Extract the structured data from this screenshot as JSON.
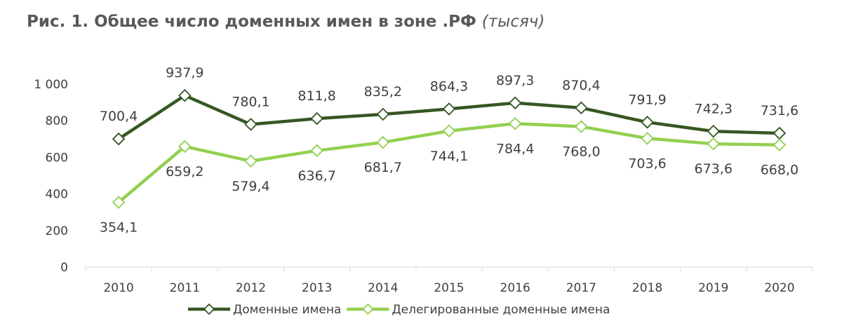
{
  "chart_data": {
    "type": "line",
    "title": "Рис. 1. Общее число доменных имен в зоне .РФ",
    "unit": "(тысяч)",
    "categories": [
      "2010",
      "2011",
      "2012",
      "2013",
      "2014",
      "2015",
      "2016",
      "2017",
      "2018",
      "2019",
      "2020"
    ],
    "series": [
      {
        "name": "Доменные имена",
        "values": [
          700.4,
          937.9,
          780.1,
          811.8,
          835.2,
          864.3,
          897.3,
          870.4,
          791.9,
          742.3,
          731.6
        ],
        "labels": [
          "700,4",
          "937,9",
          "780,1",
          "811,8",
          "835,2",
          "864,3",
          "897,3",
          "870,4",
          "791,9",
          "742,3",
          "731,6"
        ],
        "color": "#375623",
        "label_position": "above"
      },
      {
        "name": "Делегированные доменные имена",
        "values": [
          354.1,
          659.2,
          579.4,
          636.7,
          681.7,
          744.1,
          784.4,
          768.0,
          703.6,
          673.6,
          668.0
        ],
        "labels": [
          "354,1",
          "659,2",
          "579,4",
          "636,7",
          "681,7",
          "744,1",
          "784,4",
          "768,0",
          "703,6",
          "673,6",
          "668,0"
        ],
        "color": "#92D050",
        "label_position": "below"
      }
    ],
    "y_ticks": [
      0,
      200,
      400,
      600,
      800,
      1000
    ],
    "y_tick_labels": [
      "0",
      "200",
      "400",
      "600",
      "800",
      "1 000"
    ],
    "ylim": [
      0,
      1000
    ],
    "grid": false,
    "legend_position": "bottom",
    "axis_color": "#d9d9d9"
  }
}
